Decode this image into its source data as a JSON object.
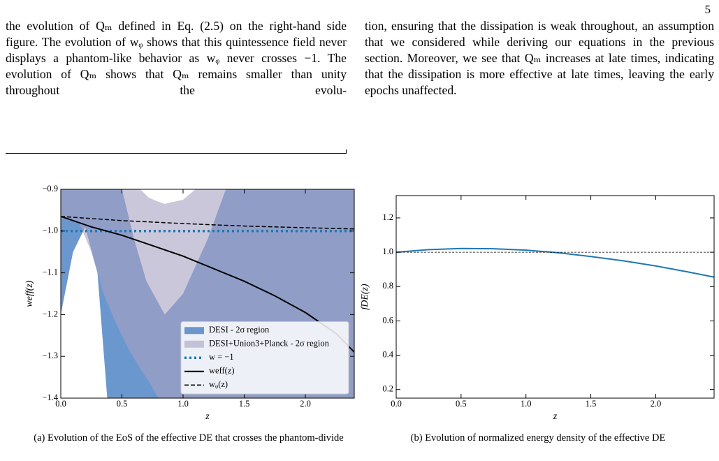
{
  "page_number": "5",
  "paragraphs": [
    "the evolution of Qₘ defined in Eq. (2.5) on the right-hand side figure. The evolution of wᵩ shows that this quintessence field never displays a phantom-like behavior as wᵩ never crosses −1. The evolution of Qₘ shows that Qₘ remains smaller than unity throughout the evolu-",
    "tion, ensuring that the dissipation is weak throughout, an assumption that we considered while deriving our equations in the previous section. Moreover, we see that Qₘ increases at late times, indicating that the dissipation is more effective at late times, leaving the early epochs unaffected."
  ],
  "chart_data": [
    {
      "type": "line",
      "caption": "(a) Evolution of the EoS of the effective DE that crosses the phantom-divide",
      "xlabel": "z",
      "ylabel": "weff(z)",
      "xlim": [
        0,
        2.4
      ],
      "ylim": [
        -1.4,
        -0.9
      ],
      "xticks": [
        {
          "value": 0,
          "label": "0.0"
        },
        0.5,
        {
          "value": 1,
          "label": "1.0"
        },
        1.5,
        {
          "value": 2,
          "label": "2.0"
        }
      ],
      "yticks": [
        {
          "value": -1.4,
          "label": "−1.4"
        },
        {
          "value": -1.3,
          "label": "−1.3"
        },
        {
          "value": -1.2,
          "label": "−1.2"
        },
        {
          "value": -1.1,
          "label": "−1.1"
        },
        {
          "value": -1.0,
          "label": "−1.0"
        },
        {
          "value": -0.9,
          "label": "−0.9"
        }
      ],
      "legend": "lower right",
      "series": [
        {
          "name": "DESI - 2σ region",
          "style": "band",
          "color": "#6b97cf",
          "x": [
            0,
            0.1,
            0.2,
            0.3,
            0.38,
            0.5,
            0.6,
            0.7,
            0.85,
            1.0,
            1.2,
            1.35,
            2.4
          ],
          "upper": [
            -0.9,
            -0.9,
            -0.9,
            -0.9,
            -0.9,
            -0.9,
            -1.02,
            -1.12,
            -1.2,
            -1.15,
            -1.02,
            -0.9,
            -0.9
          ],
          "lower": [
            -1.2,
            -1.05,
            -0.99,
            -1.1,
            -1.4,
            -1.4,
            -1.4,
            -1.4,
            -1.4,
            -1.4,
            -1.4,
            -1.4,
            -1.4
          ]
        },
        {
          "name": "DESI+Union3+Planck - 2σ region",
          "style": "band",
          "color": "#a8a2c2",
          "opacity": 0.6,
          "x": [
            0,
            0.15,
            0.25,
            0.35,
            0.45,
            0.55,
            0.65,
            0.72,
            0.8,
            0.85,
            1.0,
            1.1,
            2.4
          ],
          "upper": [
            -0.9,
            -0.9,
            -0.9,
            -0.9,
            -0.9,
            -0.9,
            -0.9,
            -0.92,
            -0.93,
            -0.935,
            -0.925,
            -0.9,
            -0.9
          ],
          "lower": [
            -0.97,
            -0.98,
            -1.05,
            -1.15,
            -1.22,
            -1.28,
            -1.33,
            -1.36,
            -1.4,
            -1.4,
            -1.4,
            -1.4,
            -1.4
          ]
        },
        {
          "name": "w = −1",
          "style": "dotted",
          "color": "#1f77b4",
          "x": [
            0,
            2.4
          ],
          "values": [
            -1,
            -1
          ]
        },
        {
          "name": "weff(z)",
          "style": "solid",
          "color": "#000000",
          "x": [
            0,
            0.25,
            0.5,
            0.75,
            1.0,
            1.25,
            1.5,
            1.75,
            2.0,
            2.25,
            2.4
          ],
          "values": [
            -0.965,
            -0.99,
            -1.01,
            -1.035,
            -1.06,
            -1.09,
            -1.12,
            -1.155,
            -1.195,
            -1.245,
            -1.29
          ]
        },
        {
          "name": "wᵩ(z)",
          "style": "dashed",
          "color": "#000000",
          "x": [
            0,
            0.5,
            1.0,
            1.5,
            2.0,
            2.4
          ],
          "values": [
            -0.965,
            -0.975,
            -0.982,
            -0.988,
            -0.992,
            -0.995
          ]
        }
      ]
    },
    {
      "type": "line",
      "caption": "(b) Evolution of normalized energy density of the effective DE",
      "xlabel": "z",
      "ylabel": "fDE(z)",
      "xlim": [
        0,
        2.45
      ],
      "ylim": [
        0.15,
        1.33
      ],
      "xticks": [
        {
          "value": 0,
          "label": "0.0"
        },
        0.5,
        {
          "value": 1,
          "label": "1.0"
        },
        1.5,
        {
          "value": 2,
          "label": "2.0"
        }
      ],
      "yticks": [
        0.2,
        0.4,
        0.6,
        0.8,
        {
          "value": 1,
          "label": "1.0"
        },
        1.2
      ],
      "hlines": [
        1.0
      ],
      "series": [
        {
          "style": "solid",
          "color": "#1f77b4",
          "x": [
            0,
            0.25,
            0.5,
            0.75,
            1.0,
            1.25,
            1.5,
            1.75,
            2.0,
            2.25,
            2.45
          ],
          "values": [
            1.0,
            1.015,
            1.022,
            1.02,
            1.012,
            0.997,
            0.975,
            0.95,
            0.92,
            0.885,
            0.855
          ]
        }
      ]
    }
  ]
}
